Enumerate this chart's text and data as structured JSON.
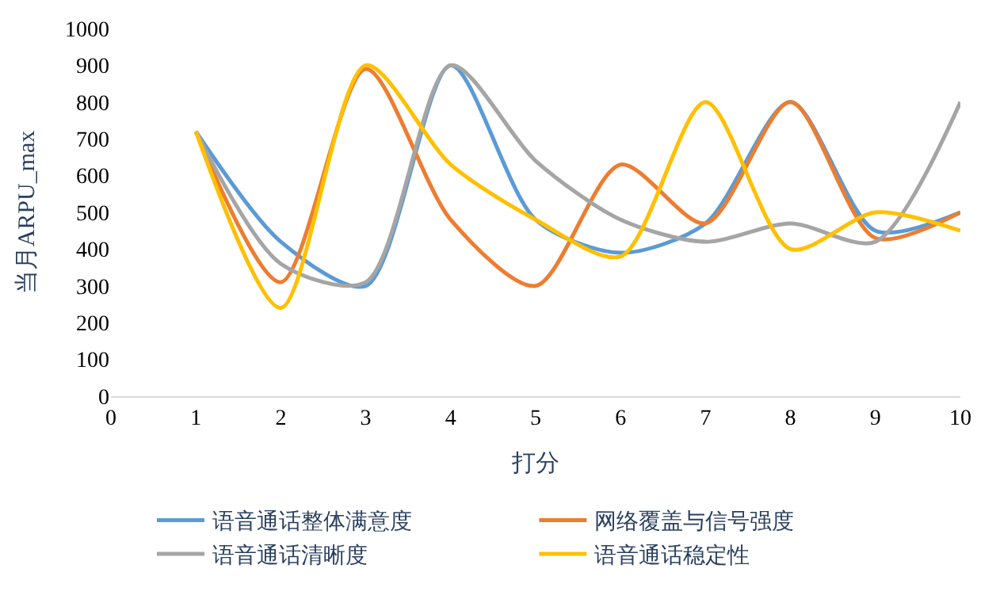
{
  "chart_data": {
    "type": "line",
    "xlabel": "打分",
    "ylabel": "当月ARPU_max",
    "x": [
      1,
      2,
      3,
      4,
      5,
      6,
      7,
      8,
      9,
      10
    ],
    "series": [
      {
        "name": "语音通话整体满意度",
        "color": "#5b9bd5",
        "values": [
          720,
          420,
          300,
          900,
          480,
          390,
          470,
          800,
          450,
          500
        ]
      },
      {
        "name": "网络覆盖与信号强度",
        "color": "#ed7d31",
        "values": [
          720,
          310,
          890,
          480,
          300,
          630,
          470,
          800,
          430,
          500
        ]
      },
      {
        "name": "语音通话清晰度",
        "color": "#a5a5a5",
        "values": [
          720,
          360,
          310,
          900,
          640,
          480,
          420,
          470,
          420,
          800
        ]
      },
      {
        "name": "语音通话稳定性",
        "color": "#ffc000",
        "values": [
          720,
          240,
          900,
          630,
          480,
          380,
          800,
          400,
          500,
          450
        ]
      }
    ],
    "xlim": [
      0,
      10
    ],
    "xticks": [
      0,
      1,
      2,
      3,
      4,
      5,
      6,
      7,
      8,
      9,
      10
    ],
    "ylim": [
      0,
      1000
    ],
    "yticks": [
      0,
      100,
      200,
      300,
      400,
      500,
      600,
      700,
      800,
      900,
      1000
    ],
    "legend": "bottom",
    "marker": "none",
    "line_style": "solid"
  }
}
